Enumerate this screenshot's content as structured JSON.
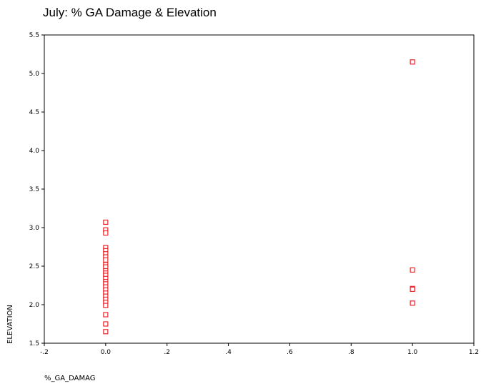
{
  "chart_data": {
    "type": "scatter",
    "title": "July: % GA Damage & Elevation",
    "xlabel": "%_GA_DAMAG",
    "ylabel": "ELEVATION",
    "xlim": [
      -0.2,
      1.2
    ],
    "ylim": [
      1.5,
      5.5
    ],
    "x_tick_labels": [
      "-.2",
      "0.0",
      ".2",
      ".4",
      ".6",
      ".8",
      "1.0",
      "1.2"
    ],
    "y_tick_labels": [
      "1.5",
      "2.0",
      "2.5",
      "3.0",
      "3.5",
      "4.0",
      "4.5",
      "5.0",
      "5.5"
    ],
    "x_ticks": [
      -0.2,
      0.0,
      0.2,
      0.4,
      0.6,
      0.8,
      1.0,
      1.2
    ],
    "y_ticks": [
      1.5,
      2.0,
      2.5,
      3.0,
      3.5,
      4.0,
      4.5,
      5.0,
      5.5
    ],
    "grid": false,
    "marker": "hollow-square",
    "marker_color": "#e8262a",
    "points": [
      {
        "x": 0.0,
        "y": 3.07
      },
      {
        "x": 0.0,
        "y": 2.97
      },
      {
        "x": 0.0,
        "y": 2.93
      },
      {
        "x": 0.0,
        "y": 2.74
      },
      {
        "x": 0.0,
        "y": 2.7
      },
      {
        "x": 0.0,
        "y": 2.66
      },
      {
        "x": 0.0,
        "y": 2.62
      },
      {
        "x": 0.0,
        "y": 2.58
      },
      {
        "x": 0.0,
        "y": 2.52
      },
      {
        "x": 0.0,
        "y": 2.49
      },
      {
        "x": 0.0,
        "y": 2.44
      },
      {
        "x": 0.0,
        "y": 2.41
      },
      {
        "x": 0.0,
        "y": 2.38
      },
      {
        "x": 0.0,
        "y": 2.34
      },
      {
        "x": 0.0,
        "y": 2.3
      },
      {
        "x": 0.0,
        "y": 2.27
      },
      {
        "x": 0.0,
        "y": 2.23
      },
      {
        "x": 0.0,
        "y": 2.19
      },
      {
        "x": 0.0,
        "y": 2.15
      },
      {
        "x": 0.0,
        "y": 2.11
      },
      {
        "x": 0.0,
        "y": 2.07
      },
      {
        "x": 0.0,
        "y": 2.03
      },
      {
        "x": 0.0,
        "y": 1.99
      },
      {
        "x": 0.0,
        "y": 1.87
      },
      {
        "x": 0.0,
        "y": 1.75
      },
      {
        "x": 0.0,
        "y": 1.65
      },
      {
        "x": 1.0,
        "y": 5.15
      },
      {
        "x": 1.0,
        "y": 2.45
      },
      {
        "x": 1.0,
        "y": 2.21
      },
      {
        "x": 1.0,
        "y": 2.2
      },
      {
        "x": 1.0,
        "y": 2.02
      }
    ]
  }
}
